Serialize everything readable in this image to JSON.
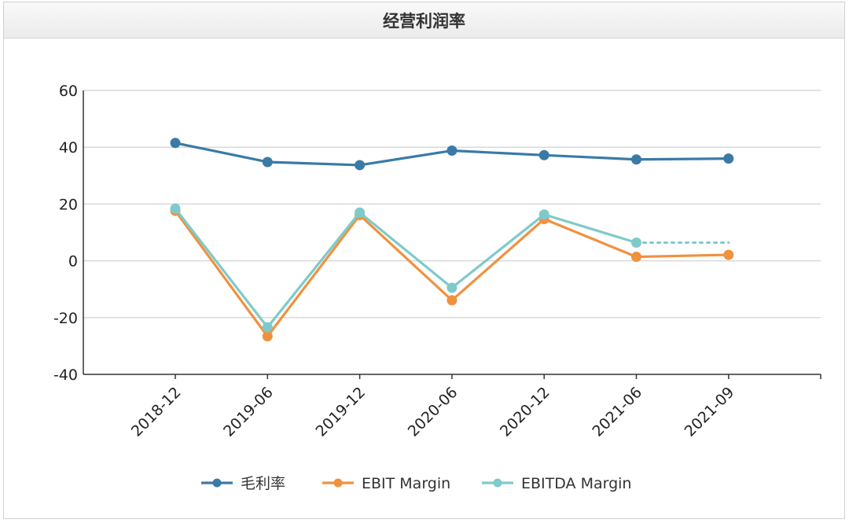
{
  "panel": {
    "title": "经营利润率"
  },
  "chart_data": {
    "type": "line",
    "title": "经营利润率",
    "categories": [
      "2018-12",
      "2019-06",
      "2019-12",
      "2020-06",
      "2020-12",
      "2021-06",
      "2021-09"
    ],
    "ylim": [
      -40,
      60
    ],
    "yticks": [
      "60",
      "40",
      "20",
      "0",
      "-20",
      "-40"
    ],
    "grid": true,
    "legend_position": "bottom",
    "series": [
      {
        "name": "毛利率",
        "color": "#3a7aa6",
        "values": [
          41.5,
          34.8,
          33.7,
          38.8,
          37.2,
          35.7,
          36.0
        ]
      },
      {
        "name": "EBIT Margin",
        "color": "#f0913f",
        "values": [
          17.6,
          -26.6,
          16.1,
          -13.9,
          14.7,
          1.4,
          2.1
        ]
      },
      {
        "name": "EBITDA Margin",
        "color": "#7ecacb",
        "values": [
          18.4,
          -23.4,
          17.0,
          -9.5,
          16.3,
          6.4,
          null
        ],
        "projection": {
          "from_index": 5,
          "to_index": 6,
          "value": 6.4,
          "style": "dotted"
        }
      }
    ]
  }
}
